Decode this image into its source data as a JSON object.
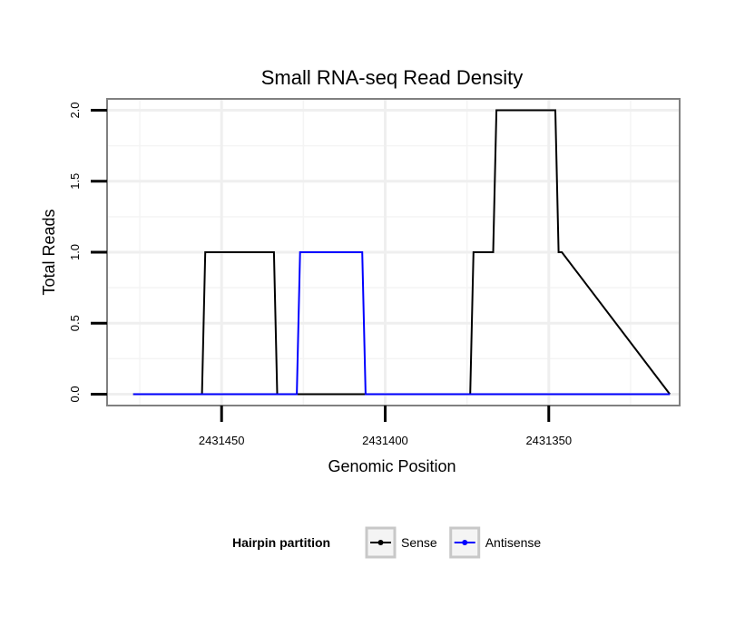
{
  "chart_data": {
    "type": "line",
    "title": "Small RNA-seq Read Density",
    "xlabel": "Genomic Position",
    "ylabel": "Total Reads",
    "x_reversed": true,
    "xlim": [
      2431485,
      2431310
    ],
    "ylim": [
      -0.08,
      2.08
    ],
    "x_ticks": [
      2431450,
      2431400,
      2431350
    ],
    "x_tick_labels": [
      "2431450",
      "2431400",
      "2431350"
    ],
    "y_ticks": [
      0.0,
      0.5,
      1.0,
      1.5,
      2.0
    ],
    "y_tick_labels": [
      "0.0",
      "0.5",
      "1.0",
      "1.5",
      "2.0"
    ],
    "grid": true,
    "legend": {
      "title": "Hairpin partition",
      "position": "bottom"
    },
    "series": [
      {
        "name": "Sense",
        "color": "#000000",
        "x": [
          2431477,
          2431456,
          2431455,
          2431434,
          2431433,
          2431397,
          2431396,
          2431382,
          2431381,
          2431375,
          2431374,
          2431373,
          2431367,
          2431366,
          2431348,
          2431347,
          2431346,
          2431313
        ],
        "y": [
          0,
          0,
          1,
          1,
          0,
          0,
          0,
          0,
          0,
          0,
          0,
          1,
          1,
          2,
          2,
          1,
          1,
          0
        ]
      },
      {
        "name": "Antisense",
        "color": "#0000ff",
        "x": [
          2431477,
          2431456,
          2431455,
          2431434,
          2431433,
          2431427,
          2431426,
          2431407,
          2431406,
          2431373,
          2431367,
          2431366,
          2431348,
          2431347,
          2431346,
          2431313
        ],
        "y": [
          0,
          0,
          0,
          0,
          0,
          0,
          1,
          1,
          0,
          0,
          0,
          0,
          0,
          0,
          0,
          0
        ]
      }
    ]
  }
}
